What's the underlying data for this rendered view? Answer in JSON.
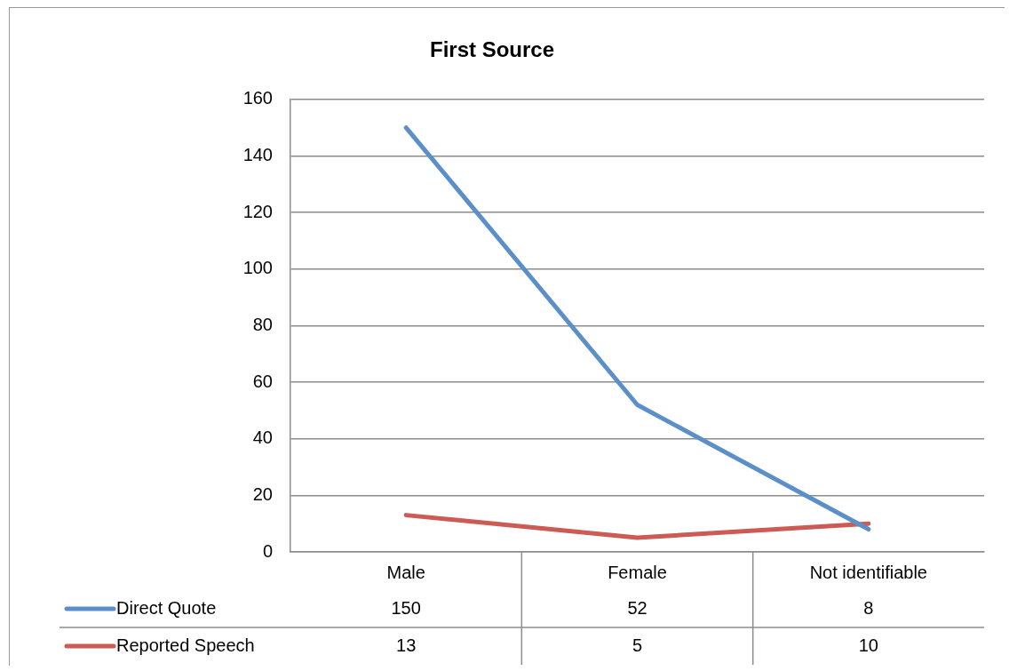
{
  "chart_data": {
    "type": "line",
    "title": "First Source",
    "categories": [
      "Male",
      "Female",
      "Not identifiable"
    ],
    "series": [
      {
        "name": "Direct Quote",
        "color": "#5b8fc9",
        "values": [
          150,
          52,
          8
        ]
      },
      {
        "name": "Reported Speech",
        "color": "#cc5b55",
        "values": [
          13,
          5,
          10
        ]
      }
    ],
    "ylim": [
      0,
      160
    ],
    "yticks": [
      0,
      20,
      40,
      60,
      80,
      100,
      120,
      140,
      160
    ],
    "grid": "y",
    "legend": "bottom left",
    "marker": "none",
    "line_style": "solid",
    "data_labels": true
  }
}
